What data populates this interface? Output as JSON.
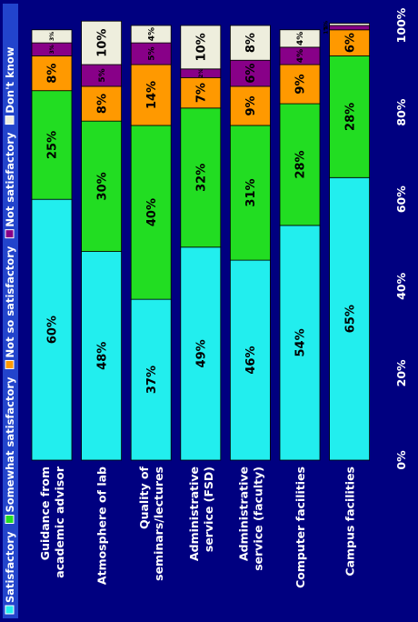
{
  "chart_data": {
    "type": "bar",
    "stacked": true,
    "percent_stacked": true,
    "orientation": "horizontal",
    "categories": [
      "Guidance from academic advisor",
      "Atmosphere of lab",
      "Quality of seminars/lectures",
      "Administrative service (FSD)",
      "Administrative service (faculty)",
      "Computer facilities",
      "Campus facilities"
    ],
    "series": [
      {
        "name": "Satisfactory",
        "color": "#22EEEE",
        "values": [
          60,
          48,
          37,
          49,
          46,
          54,
          65
        ],
        "labels": [
          "60%",
          "48%",
          "37%",
          "49%",
          "46%",
          "54%",
          "65%"
        ]
      },
      {
        "name": "Somewhat satisfactory",
        "color": "#22DD22",
        "values": [
          25,
          30,
          40,
          32,
          31,
          28,
          28
        ],
        "labels": [
          "25%",
          "30%",
          "40%",
          "32%",
          "31%",
          "28%",
          "28%"
        ]
      },
      {
        "name": "Not so satisfactory",
        "color": "#FF9900",
        "values": [
          8,
          8,
          14,
          7,
          9,
          9,
          6
        ],
        "labels": [
          "8%",
          "8%",
          "14%",
          "7%",
          "9%",
          "9%",
          "6%"
        ]
      },
      {
        "name": "Not satisfactory",
        "color": "#880088",
        "values": [
          3,
          5,
          5,
          2,
          6,
          4,
          1
        ],
        "labels": [
          "3%",
          "5%",
          "5%",
          "2%",
          "6%",
          "4%",
          "1%"
        ]
      },
      {
        "name": "Don't know",
        "color": "#EEEEDD",
        "values": [
          3,
          10,
          4,
          10,
          8,
          4,
          0.5
        ],
        "labels": [
          "3%",
          "10%",
          "4%",
          "10%",
          "8%",
          "4%",
          "1%"
        ]
      }
    ],
    "value_axis": {
      "min": 0,
      "max": 100,
      "ticks": [
        "0%",
        "20%",
        "40%",
        "60%",
        "80%",
        "100%"
      ]
    },
    "legend_position": "top"
  }
}
